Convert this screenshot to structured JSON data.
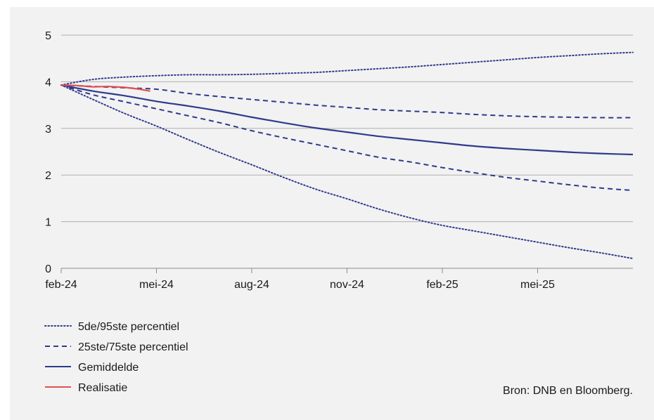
{
  "chart_data": {
    "type": "line",
    "title": "",
    "xlabel": "",
    "ylabel": "",
    "ylim": [
      0,
      5
    ],
    "yticks": [
      0,
      1,
      2,
      3,
      4,
      5
    ],
    "xlim": [
      "2024-02",
      "2025-08"
    ],
    "xticks": [
      "feb-24",
      "mei-24",
      "aug-24",
      "nov-24",
      "feb-25",
      "mei-25"
    ],
    "grid": "horizontal",
    "legend_position": "bottom-left",
    "x": [
      "2024-02",
      "2024-03",
      "2024-04",
      "2024-05",
      "2024-06",
      "2024-07",
      "2024-08",
      "2024-09",
      "2024-10",
      "2024-11",
      "2024-12",
      "2025-01",
      "2025-02",
      "2025-03",
      "2025-04",
      "2025-05",
      "2025-06",
      "2025-07",
      "2025-08"
    ],
    "series": [
      {
        "name": "5de/95ste percentiel",
        "style": "dotted",
        "color": "#2e3a8c",
        "values": [
          3.93,
          4.05,
          4.1,
          4.13,
          4.15,
          4.15,
          4.16,
          4.18,
          4.2,
          4.24,
          4.28,
          4.32,
          4.37,
          4.42,
          4.47,
          4.52,
          4.56,
          4.6,
          4.63
        ]
      },
      {
        "name": "5de/95ste percentiel",
        "style": "dotted",
        "color": "#2e3a8c",
        "values": [
          3.93,
          3.62,
          3.32,
          3.05,
          2.76,
          2.48,
          2.22,
          1.95,
          1.7,
          1.49,
          1.27,
          1.08,
          0.92,
          0.8,
          0.68,
          0.56,
          0.44,
          0.33,
          0.21
        ]
      },
      {
        "name": "25ste/75ste percentiel",
        "style": "dashed",
        "color": "#2e3a8c",
        "values": [
          3.93,
          3.9,
          3.87,
          3.84,
          3.75,
          3.68,
          3.62,
          3.56,
          3.5,
          3.45,
          3.4,
          3.37,
          3.34,
          3.3,
          3.27,
          3.25,
          3.24,
          3.23,
          3.23
        ]
      },
      {
        "name": "25ste/75ste percentiel",
        "style": "dashed",
        "color": "#2e3a8c",
        "values": [
          3.93,
          3.72,
          3.57,
          3.42,
          3.27,
          3.12,
          2.95,
          2.8,
          2.66,
          2.52,
          2.38,
          2.28,
          2.16,
          2.05,
          1.95,
          1.87,
          1.79,
          1.72,
          1.67
        ]
      },
      {
        "name": "Gemiddelde",
        "style": "solid",
        "color": "#2e3a8c",
        "values": [
          3.93,
          3.8,
          3.7,
          3.58,
          3.48,
          3.37,
          3.24,
          3.12,
          3.01,
          2.92,
          2.83,
          2.76,
          2.69,
          2.62,
          2.57,
          2.53,
          2.49,
          2.46,
          2.44
        ]
      },
      {
        "name": "Realisatie",
        "style": "solid",
        "color": "#e05050",
        "x": [
          "2024-02",
          "2024-02-15",
          "2024-03",
          "2024-03-15",
          "2024-04",
          "2024-04-15",
          "2024-04-25"
        ],
        "values": [
          3.93,
          3.92,
          3.89,
          3.9,
          3.88,
          3.84,
          3.8
        ]
      }
    ],
    "legend": [
      {
        "label": "5de/95ste percentiel",
        "style": "dotted",
        "color": "#2e3a8c"
      },
      {
        "label": "25ste/75ste percentiel",
        "style": "dashed",
        "color": "#2e3a8c"
      },
      {
        "label": "Gemiddelde",
        "style": "solid",
        "color": "#2e3a8c"
      },
      {
        "label": "Realisatie",
        "style": "solid",
        "color": "#e05050"
      }
    ],
    "source": "Bron: DNB en Bloomberg."
  }
}
